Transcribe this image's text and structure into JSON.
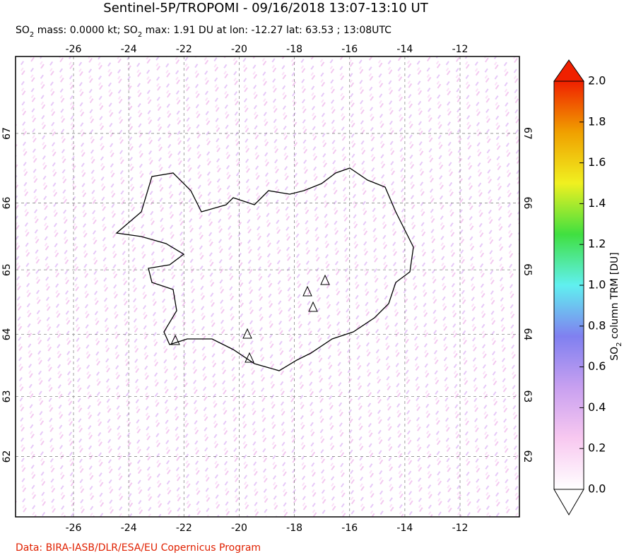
{
  "chart_data": {
    "type": "map",
    "title": "Sentinel-5P/TROPOMI - 09/16/2018 13:07-13:10 UT",
    "subtitle": [
      "SO",
      "2",
      " mass: 0.0000 kt; SO",
      "2",
      " max: 1.91 DU at lon: -12.27 lat: 63.53 ; 13:08UTC"
    ],
    "xlim": [
      -28.1,
      -9.85
    ],
    "ylim": [
      60.96,
      68.06
    ],
    "xticks": [
      -26,
      -24,
      -22,
      -20,
      -18,
      -16,
      -14,
      -12
    ],
    "yticks": [
      62,
      63,
      64,
      65,
      66,
      67
    ],
    "grid": true,
    "colorbar": {
      "label": [
        "SO",
        "2",
        " column TRM [DU]"
      ],
      "lim": [
        0,
        2
      ],
      "ticks": [
        {
          "value": 0,
          "label": "0.0"
        },
        {
          "value": 0.2,
          "label": "0.2"
        },
        {
          "value": 0.4,
          "label": "0.4"
        },
        {
          "value": 0.6,
          "label": "0.6"
        },
        {
          "value": 0.8,
          "label": "0.8"
        },
        {
          "value": 1,
          "label": "1.0"
        },
        {
          "value": 1.2,
          "label": "1.2"
        },
        {
          "value": 1.4,
          "label": "1.4"
        },
        {
          "value": 1.6,
          "label": "1.6"
        },
        {
          "value": 1.8,
          "label": "1.8"
        },
        {
          "value": 2,
          "label": "2.0"
        }
      ],
      "colors": [
        "#ffffff",
        "#f8c8f0",
        "#c8a0f0",
        "#8080f0",
        "#60f0f0",
        "#40e040",
        "#f0f020",
        "#f0a000",
        "#f02000"
      ]
    },
    "credit": "Data: BIRA-IASB/DLR/ESA/EU Copernicus Program"
  }
}
